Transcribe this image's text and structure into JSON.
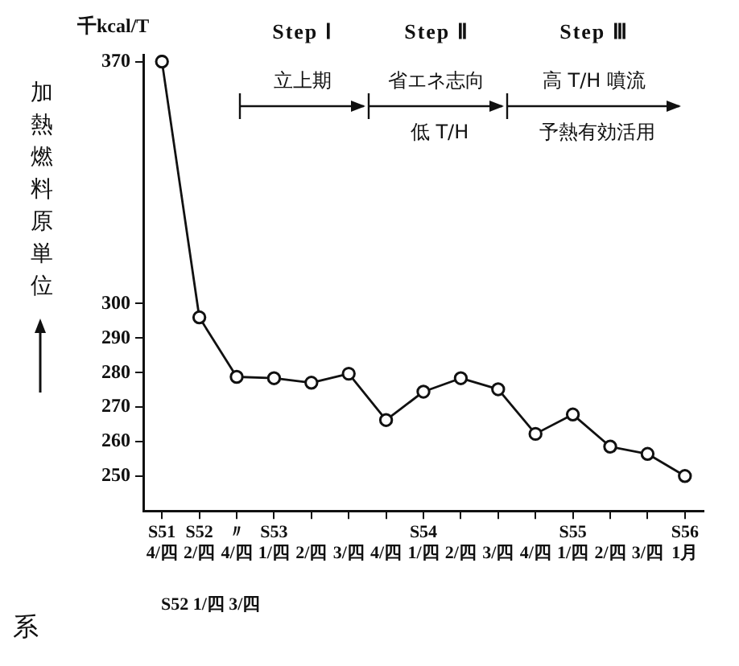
{
  "chart_data": {
    "type": "line",
    "ylabel": "加熱燃料原単位",
    "categories": [
      "S51 4/四",
      "S52 2/四",
      "〃 4/四",
      "S53 1/四",
      "2/四",
      "3/四",
      "4/四",
      "S54 1/四",
      "2/四",
      "3/四",
      "4/四",
      "S55 1/四",
      "2/四",
      "3/四",
      "S56 1月"
    ],
    "series": [
      {
        "color": "#111111",
        "values": [
          370,
          296,
          278.8,
          278.4,
          277.1,
          279.7,
          266.3,
          274.5,
          278.4,
          275.2,
          262.3,
          267.9,
          258.6,
          256.5,
          250.1
        ]
      }
    ],
    "ylim": [
      240,
      372
    ],
    "yticks": [
      250,
      260,
      270,
      280,
      290,
      300,
      370
    ],
    "marker": "circle",
    "line_style": "solid",
    "grid": false,
    "legend": false,
    "annotations": [
      "千kcal/T",
      "Step Ⅰ",
      "Step Ⅱ",
      "Step Ⅲ",
      "立上期",
      "省エネ志向",
      "高 T/H 噴流",
      "低 T/H",
      "予熱有効活用",
      "S52 1/四 3/四",
      "系"
    ]
  }
}
